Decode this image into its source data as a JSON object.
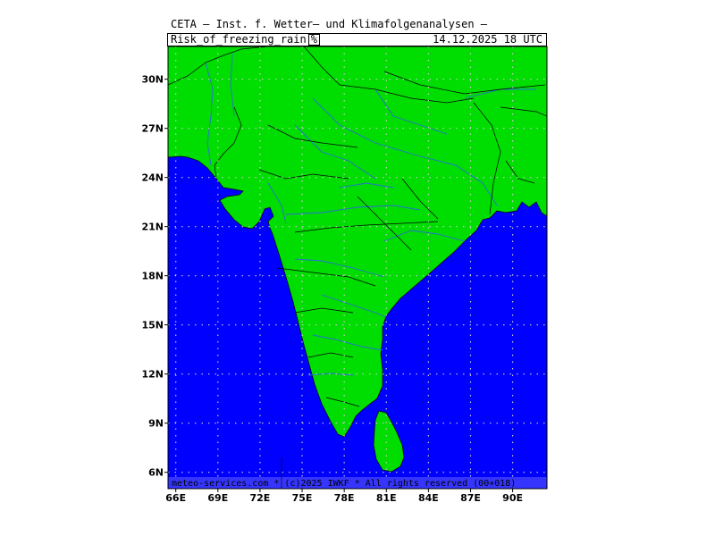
{
  "header": {
    "title": "CETA — Inst. f. Wetter— und Klimafolgenanalysen —",
    "product": "Risk_of_freezing_rain",
    "unit": "%",
    "valid_time": "14.12.2025 18 UTC"
  },
  "map": {
    "lat_range": [
      5,
      32
    ],
    "lon_range": [
      65,
      92
    ],
    "lat_ticks": [
      "30N",
      "27N",
      "24N",
      "21N",
      "18N",
      "15N",
      "12N",
      "9N",
      "6N"
    ],
    "lon_ticks": [
      "66E",
      "69E",
      "72E",
      "75E",
      "78E",
      "81E",
      "84E",
      "87E",
      "90E"
    ],
    "grid": true,
    "colors": {
      "land": "#00dd00",
      "sea": "#0000ff",
      "grid": "#cccccc",
      "rivers": "#2a6fd6",
      "borders": "#000000",
      "footer_band": "#3535ff"
    }
  },
  "footer": {
    "credit": "meteo-services.com * (c)2025 IWKF * All rights reserved (00+018)"
  }
}
